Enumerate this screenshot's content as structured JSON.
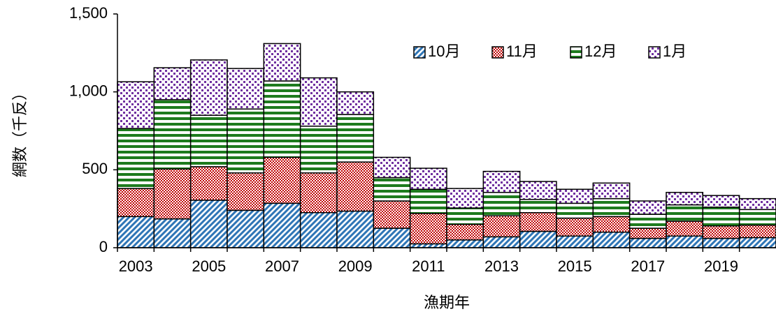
{
  "chart_data": {
    "type": "stacked_bar",
    "x_label": "漁期年",
    "y_label": "網数（千反）",
    "categories": [
      "2003",
      null,
      "2005",
      null,
      "2007",
      null,
      "2009",
      null,
      "2011",
      null,
      "2013",
      null,
      "2015",
      null,
      "2017",
      null,
      "2019",
      null
    ],
    "series": [
      {
        "name": "10月",
        "color": "#2e75b6",
        "pattern": "diagonal",
        "values": [
          200,
          185,
          305,
          240,
          285,
          225,
          235,
          125,
          25,
          50,
          70,
          105,
          75,
          100,
          60,
          75,
          60,
          65
        ]
      },
      {
        "name": "11月",
        "color": "#c00000",
        "pattern": "checker",
        "values": [
          180,
          320,
          215,
          240,
          295,
          255,
          315,
          175,
          195,
          100,
          135,
          120,
          115,
          100,
          65,
          95,
          80,
          80
        ]
      },
      {
        "name": "12月",
        "color": "#1e7b1e",
        "pattern": "hstripe",
        "values": [
          385,
          445,
          330,
          410,
          490,
          300,
          305,
          150,
          155,
          105,
          150,
          85,
          95,
          115,
          90,
          105,
          120,
          100
        ]
      },
      {
        "name": "1月",
        "color": "#7030a0",
        "pattern": "dots",
        "values": [
          300,
          205,
          355,
          260,
          240,
          310,
          145,
          130,
          135,
          125,
          135,
          115,
          90,
          100,
          85,
          80,
          75,
          70
        ]
      }
    ],
    "ylim": [
      0,
      1500
    ],
    "yticks": [
      0,
      500,
      {
        "value": 1000,
        "label": "1,000"
      },
      {
        "value": 1500,
        "label": "1,500"
      }
    ],
    "legend": "upper right"
  }
}
